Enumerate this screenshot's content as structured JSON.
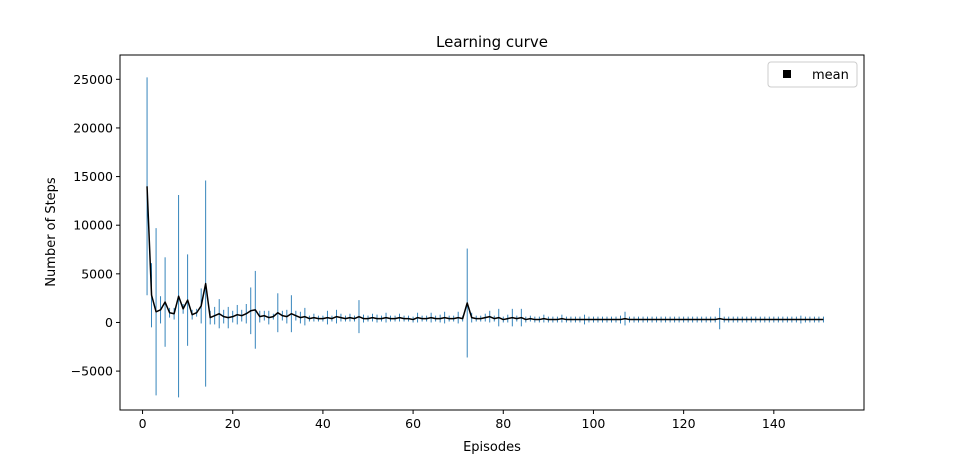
{
  "chart_data": {
    "type": "line",
    "title": "Learning curve",
    "xlabel": "Episodes",
    "ylabel": "Number of Steps",
    "xlim": [
      -5,
      160
    ],
    "ylim": [
      -9000,
      27500
    ],
    "xticks": [
      0,
      20,
      40,
      60,
      80,
      100,
      120,
      140
    ],
    "yticks": [
      -5000,
      0,
      5000,
      10000,
      15000,
      20000,
      25000
    ],
    "ytick_labels": [
      "−5000",
      "0",
      "5000",
      "10000",
      "15000",
      "20000",
      "25000"
    ],
    "grid": false,
    "legend": {
      "position": "upper right",
      "entries": [
        "mean"
      ]
    },
    "series": [
      {
        "name": "mean",
        "color": "#000000",
        "errorbar_color": "#1f77b4",
        "x": [
          1,
          2,
          3,
          4,
          5,
          6,
          7,
          8,
          9,
          10,
          11,
          12,
          13,
          14,
          15,
          16,
          17,
          18,
          19,
          20,
          21,
          22,
          23,
          24,
          25,
          26,
          27,
          28,
          29,
          30,
          31,
          32,
          33,
          34,
          35,
          36,
          37,
          38,
          39,
          40,
          41,
          42,
          43,
          44,
          45,
          46,
          47,
          48,
          49,
          50,
          51,
          52,
          53,
          54,
          55,
          56,
          57,
          58,
          59,
          60,
          61,
          62,
          63,
          64,
          65,
          66,
          67,
          68,
          69,
          70,
          71,
          72,
          73,
          74,
          75,
          76,
          77,
          78,
          79,
          80,
          81,
          82,
          83,
          84,
          85,
          86,
          87,
          88,
          89,
          90,
          91,
          92,
          93,
          94,
          95,
          96,
          97,
          98,
          99,
          100,
          101,
          102,
          103,
          104,
          105,
          106,
          107,
          108,
          109,
          110,
          111,
          112,
          113,
          114,
          115,
          116,
          117,
          118,
          119,
          120,
          121,
          122,
          123,
          124,
          125,
          126,
          127,
          128,
          129,
          130,
          131,
          132,
          133,
          134,
          135,
          136,
          137,
          138,
          139,
          140,
          141,
          142,
          143,
          144,
          145,
          146,
          147,
          148,
          149,
          150,
          151
        ],
        "y": [
          14000,
          2800,
          1100,
          1300,
          2100,
          1000,
          900,
          2700,
          1400,
          2300,
          800,
          1000,
          1700,
          4000,
          500,
          700,
          900,
          600,
          500,
          600,
          800,
          700,
          900,
          1200,
          1300,
          600,
          700,
          500,
          600,
          1000,
          700,
          600,
          900,
          700,
          500,
          600,
          400,
          500,
          400,
          400,
          500,
          400,
          600,
          500,
          400,
          500,
          400,
          600,
          400,
          400,
          500,
          400,
          400,
          500,
          400,
          400,
          500,
          400,
          400,
          300,
          500,
          400,
          400,
          500,
          400,
          400,
          500,
          400,
          400,
          500,
          400,
          2000,
          500,
          400,
          400,
          500,
          600,
          400,
          500,
          300,
          400,
          500,
          400,
          500,
          300,
          400,
          300,
          300,
          400,
          300,
          300,
          300,
          400,
          300,
          300,
          300,
          300,
          300,
          300,
          300,
          300,
          300,
          300,
          300,
          300,
          300,
          400,
          300,
          300,
          300,
          300,
          300,
          300,
          300,
          300,
          300,
          300,
          300,
          300,
          300,
          300,
          300,
          300,
          300,
          300,
          300,
          300,
          400,
          300,
          300,
          300,
          300,
          300,
          300,
          300,
          300,
          300,
          300,
          300,
          300,
          300,
          300,
          300,
          300,
          300,
          300,
          300,
          300,
          300,
          300,
          300
        ],
        "err": [
          11200,
          3300,
          8600,
          1400,
          4600,
          500,
          600,
          10400,
          500,
          4700,
          500,
          400,
          1800,
          10600,
          700,
          900,
          1500,
          700,
          1100,
          600,
          1000,
          600,
          1000,
          2400,
          4000,
          600,
          500,
          700,
          300,
          2000,
          500,
          700,
          1900,
          500,
          600,
          900,
          300,
          400,
          300,
          300,
          700,
          300,
          700,
          400,
          300,
          400,
          300,
          1700,
          400,
          300,
          400,
          400,
          300,
          500,
          300,
          300,
          400,
          300,
          300,
          300,
          500,
          300,
          300,
          500,
          300,
          400,
          600,
          300,
          300,
          600,
          300,
          5600,
          500,
          300,
          300,
          400,
          600,
          300,
          900,
          300,
          400,
          900,
          300,
          900,
          300,
          300,
          300,
          300,
          400,
          300,
          300,
          300,
          400,
          300,
          300,
          300,
          300,
          500,
          300,
          300,
          300,
          300,
          300,
          300,
          300,
          400,
          700,
          300,
          300,
          300,
          300,
          300,
          300,
          300,
          300,
          300,
          300,
          300,
          300,
          300,
          300,
          300,
          300,
          300,
          300,
          300,
          300,
          1100,
          300,
          300,
          300,
          300,
          300,
          300,
          300,
          300,
          300,
          300,
          300,
          300,
          300,
          300,
          300,
          300,
          300,
          400,
          300,
          300,
          300,
          300,
          300
        ]
      }
    ]
  }
}
